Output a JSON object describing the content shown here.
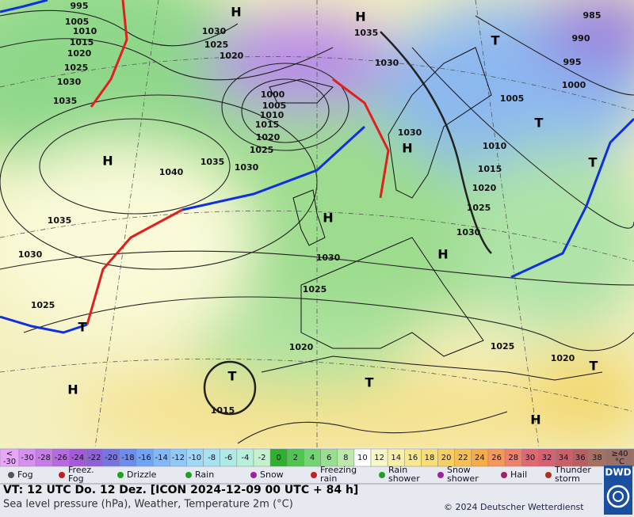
{
  "map": {
    "isobars": [
      995,
      1005,
      1010,
      1015,
      1020,
      1025,
      1030,
      1035,
      1030,
      1025,
      1020,
      1035,
      1030,
      1000,
      1005,
      1010,
      1015,
      1020,
      1025,
      1035,
      1030,
      1040,
      1035,
      1030,
      1025,
      1030,
      1010,
      1015,
      1020,
      1025,
      1030,
      1030,
      1025,
      1020,
      1025,
      1020,
      1015,
      985,
      990,
      995,
      1000,
      1005
    ],
    "systems": [
      "H",
      "H",
      "T",
      "H",
      "H",
      "H",
      "H",
      "T",
      "T",
      "T",
      "T",
      "T",
      "H",
      "H",
      "T"
    ]
  },
  "colorbar": {
    "low": "<",
    "low_value": "-30",
    "values": [
      -30,
      -28,
      -26,
      -24,
      -22,
      -20,
      -18,
      -16,
      -14,
      -12,
      -10,
      -8,
      -6,
      -4,
      -2,
      0,
      2,
      4,
      6,
      8,
      10,
      12,
      14,
      16,
      18,
      20,
      22,
      24,
      26,
      28,
      30,
      32,
      34,
      36,
      38
    ],
    "colors": [
      "#d890f0",
      "#c87ce8",
      "#b868e0",
      "#a45ad8",
      "#9060d8",
      "#7874e0",
      "#6c8cf0",
      "#70a4f8",
      "#80b8f8",
      "#90c8f8",
      "#a0d8f8",
      "#a8e2f0",
      "#b0eae6",
      "#b8f0dc",
      "#c4f2cc",
      "#30b030",
      "#50c450",
      "#74d474",
      "#98e090",
      "#bce8ac",
      "#ffffff",
      "#f8f8c8",
      "#f8f0a8",
      "#f8e890",
      "#f8de74",
      "#f8d060",
      "#f8c050",
      "#f8ac48",
      "#f89858",
      "#f08068",
      "#e06870",
      "#d86070",
      "#c86068",
      "#b86060",
      "#a87060"
    ],
    "low_color": "#e8a8f8",
    "high": "≥40",
    "high_unit": "°C",
    "high_color": "#987068"
  },
  "legend": [
    {
      "lines": [
        "Fog"
      ]
    },
    {
      "lines": [
        "Freez.",
        "Fog"
      ]
    },
    {
      "lines": [
        "Drizzle"
      ]
    },
    {
      "lines": [
        "Rain"
      ]
    },
    {
      "lines": [
        "Snow"
      ]
    },
    {
      "lines": [
        "Freezing",
        "rain"
      ]
    },
    {
      "lines": [
        "Rain",
        "shower"
      ]
    },
    {
      "lines": [
        "Snow",
        "shower"
      ]
    },
    {
      "lines": [
        "Hail"
      ]
    },
    {
      "lines": [
        "Thunder",
        "storm"
      ]
    }
  ],
  "footer": {
    "valid": "VT: 12 UTC Do.  12 Dez. [ICON 2024-12-09  00 UTC + 84 h]",
    "description": "Sea level pressure (hPa), Weather, Temperature 2m (°C)",
    "copyright": "© 2024 Deutscher Wetterdienst",
    "logo": "DWD"
  }
}
